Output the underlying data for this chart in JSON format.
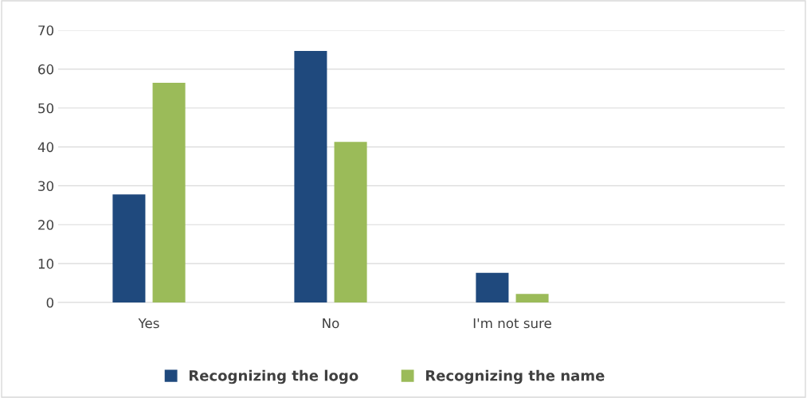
{
  "chart_data": {
    "type": "bar",
    "categories": [
      "Yes",
      "No",
      "I'm not sure",
      null
    ],
    "series": [
      {
        "name": "Recognizing the logo",
        "color": "#1f497d",
        "values": [
          27.8,
          64.7,
          7.6,
          null
        ]
      },
      {
        "name": "Recognizing the name",
        "color": "#9bbb59",
        "values": [
          56.5,
          41.3,
          2.2,
          null
        ]
      }
    ],
    "ylim": [
      0,
      70
    ],
    "yticks": [
      0,
      10,
      20,
      30,
      40,
      50,
      60,
      70
    ],
    "grid": "y",
    "legend": "bottom"
  }
}
